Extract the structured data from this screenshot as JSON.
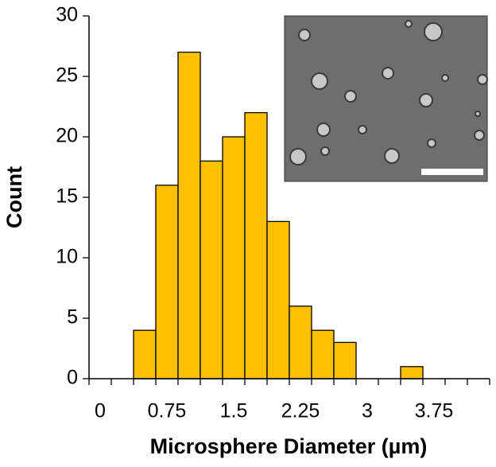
{
  "chart_data": {
    "type": "bar",
    "x_label": "Microsphere Diameter (µm)",
    "y_label": "Count",
    "categories": [
      "0",
      null,
      null,
      "0.75",
      null,
      null,
      "1.5",
      null,
      null,
      "2.25",
      null,
      null,
      "3",
      null,
      null,
      "3.75",
      null,
      null
    ],
    "values": [
      0,
      0,
      4,
      16,
      27,
      18,
      20,
      22,
      13,
      6,
      4,
      3,
      0,
      0,
      1,
      0,
      0,
      0
    ],
    "color": "#FFC000",
    "edge_color": "#000000",
    "ylim": [
      0,
      30
    ],
    "yticks": [
      0,
      5,
      10,
      15,
      20,
      25,
      30
    ],
    "grid": false
  }
}
